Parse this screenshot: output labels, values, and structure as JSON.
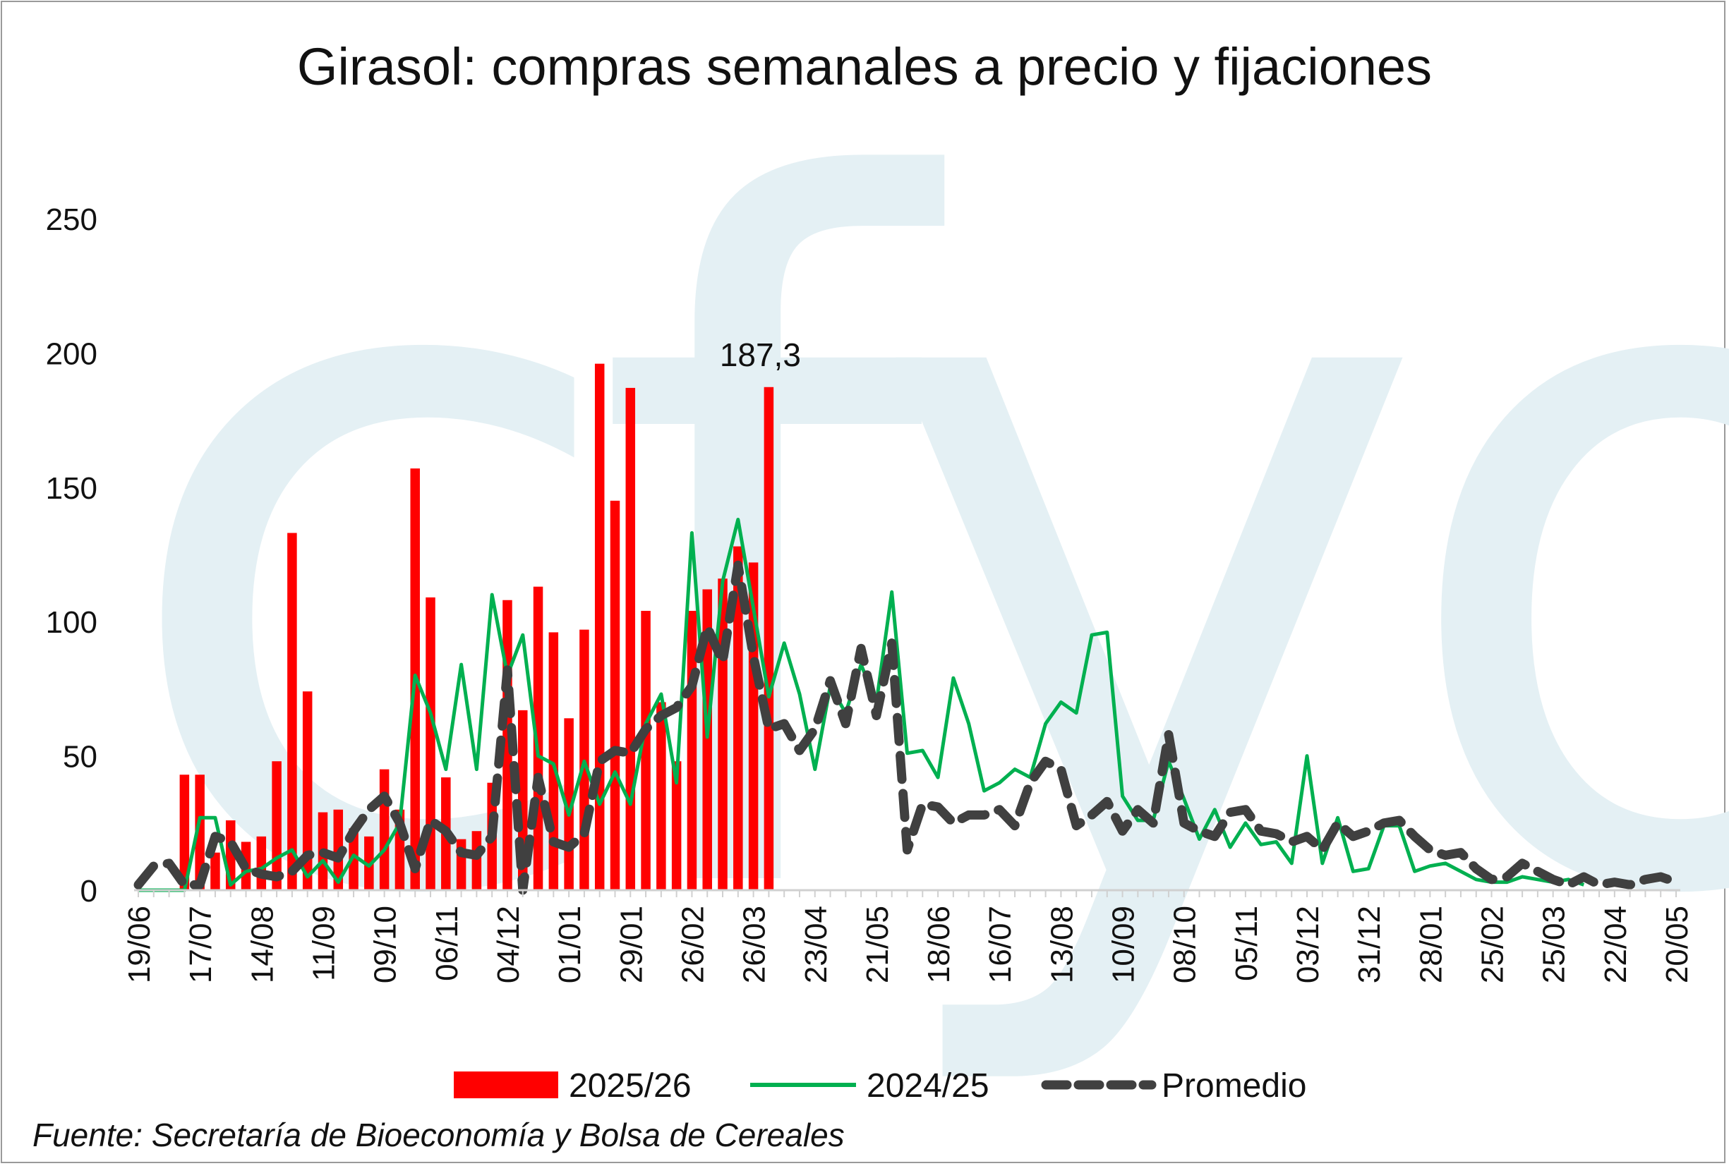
{
  "colors": {
    "bar": "#ff0000",
    "line2425": "#00b050",
    "avg": "#404040",
    "watermark": "#e4f0f4",
    "axis": "#d0d0d0"
  },
  "watermark_text": "cfyo",
  "source": "Fuente: Secretaría de Bioeconomía y Bolsa de Cereales",
  "chart_data": {
    "type": "bar",
    "title": "Girasol: compras semanales a precio y fijaciones",
    "ylim": [
      0,
      250
    ],
    "yticks": [
      "0",
      "50",
      "100",
      "150",
      "200",
      "250"
    ],
    "xtick_labels": [
      "19/06",
      "17/07",
      "14/08",
      "11/09",
      "09/10",
      "06/11",
      "04/12",
      "01/01",
      "29/01",
      "26/02",
      "26/03",
      "23/04",
      "21/05",
      "18/06",
      "16/07",
      "13/08",
      "10/09",
      "08/10",
      "05/11",
      "03/12",
      "31/12",
      "28/01",
      "25/02",
      "25/03",
      "22/04",
      "20/05"
    ],
    "n_weeks": 101,
    "grid": false,
    "legend_position": "bottom",
    "data_label": {
      "text": "187,3",
      "week": 41,
      "value": 187.3
    },
    "series": [
      {
        "name": "2025/26",
        "type": "bar",
        "values": [
          0,
          0,
          0,
          43,
          43,
          14,
          26,
          18,
          20,
          48,
          133,
          74,
          29,
          30,
          23,
          20,
          45,
          30,
          157,
          109,
          42,
          19,
          22,
          40,
          108,
          67,
          113,
          96,
          64,
          97,
          196,
          145,
          187,
          104,
          70,
          48,
          104,
          112,
          116,
          128,
          122,
          187.3
        ]
      },
      {
        "name": "2024/25",
        "type": "line",
        "values": [
          0,
          0,
          0,
          0,
          27,
          27,
          2,
          7,
          8,
          12,
          15,
          5,
          11,
          3,
          13,
          9,
          15,
          25,
          80,
          66,
          45,
          84,
          45,
          110,
          80,
          95,
          50,
          47,
          28,
          48,
          32,
          44,
          32,
          62,
          73,
          40,
          133,
          57,
          115,
          138,
          105,
          72,
          92,
          73,
          45,
          76,
          66,
          84,
          70,
          111,
          51,
          52,
          42,
          79,
          62,
          37,
          40,
          45,
          42,
          62,
          70,
          66,
          95,
          96,
          35,
          26,
          26,
          48,
          34,
          19,
          30,
          16,
          25,
          17,
          18,
          10,
          50,
          10,
          27,
          7,
          8,
          24,
          24,
          7,
          9,
          10,
          7,
          4,
          3,
          3,
          5,
          4,
          3,
          4,
          2
        ]
      },
      {
        "name": "Promedio",
        "type": "dashed-line",
        "values": [
          2,
          9,
          10,
          2,
          2,
          20,
          18,
          8,
          6,
          5,
          7,
          13,
          14,
          12,
          22,
          30,
          35,
          25,
          8,
          26,
          22,
          14,
          13,
          20,
          82,
          0,
          42,
          18,
          16,
          21,
          48,
          52,
          51,
          60,
          65,
          68,
          76,
          98,
          85,
          121,
          87,
          60,
          62,
          52,
          60,
          78,
          62,
          90,
          65,
          92,
          15,
          32,
          31,
          25,
          28,
          28,
          30,
          24,
          40,
          48,
          45,
          24,
          28,
          33,
          22,
          30,
          25,
          58,
          25,
          22,
          20,
          29,
          30,
          22,
          21,
          18,
          20,
          15,
          25,
          20,
          22,
          25,
          26,
          20,
          15,
          13,
          14,
          8,
          4,
          5,
          10,
          7,
          4,
          2,
          5,
          2,
          3,
          2,
          4,
          5,
          3
        ]
      }
    ]
  }
}
